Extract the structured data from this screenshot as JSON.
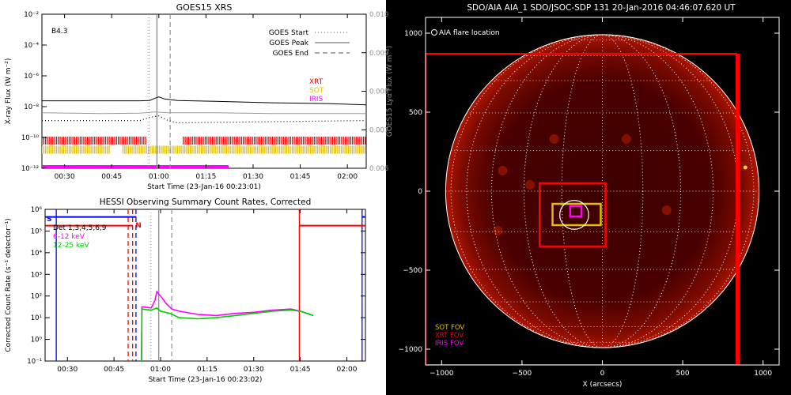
{
  "chart_data": [
    {
      "type": "line",
      "title": "GOES15 XRS",
      "class_label": "B4.3",
      "xlabel": "Start Time (23-Jan-16 00:23:01)",
      "ylabel": "X-ray Flux (W m⁻²)",
      "ylabel_right": "GOES15 Lyα Flux (W m⁻²)",
      "xlim": [
        0.38,
        2.1
      ],
      "x_ticks": [
        0.5,
        0.75,
        1.0,
        1.25,
        1.5,
        1.75,
        2.0
      ],
      "x_tick_labels": [
        "00:30",
        "00:45",
        "01:00",
        "01:15",
        "01:30",
        "01:45",
        "02:00"
      ],
      "y_log_range": [
        -12,
        -2
      ],
      "y_ticks": [
        {
          "exp": -2,
          "label": "10⁻²"
        },
        {
          "exp": -4,
          "label": "10⁻⁴"
        },
        {
          "exp": -6,
          "label": "10⁻⁶"
        },
        {
          "exp": -8,
          "label": "10⁻⁸"
        },
        {
          "exp": -10,
          "label": "10⁻¹⁰"
        },
        {
          "exp": -12,
          "label": "10⁻¹²"
        }
      ],
      "y2lim": [
        0.006,
        0.01
      ],
      "y2_ticks": [
        {
          "value": 0.01,
          "label": "0.010"
        },
        {
          "value": 0.009,
          "label": "0.009"
        },
        {
          "value": 0.008,
          "label": "0.008"
        },
        {
          "value": 0.007,
          "label": "0.007"
        },
        {
          "value": 0.006,
          "label": "0.006"
        }
      ],
      "legend": [
        {
          "name": "GOES Start",
          "style": "dotted",
          "color": "#909090"
        },
        {
          "name": "GOES Peak",
          "style": "solid",
          "color": "#909090"
        },
        {
          "name": "GOES End",
          "style": "dashed",
          "color": "#909090"
        }
      ],
      "instrument_legend": [
        {
          "name": "XRT",
          "color": "#ff0000"
        },
        {
          "name": "SOT",
          "color": "#e0c000"
        },
        {
          "name": "IRIS",
          "color": "#ff00ff"
        }
      ],
      "events": {
        "start": 0.948,
        "peak": 0.99,
        "end": 1.06
      },
      "series": [
        {
          "color": "#000000",
          "style": "solid",
          "x": [
            0.38,
            0.9,
            0.95,
            0.98,
            1.0,
            1.03,
            1.1,
            1.3,
            1.6,
            1.9,
            2.1
          ],
          "log_y": [
            -7.62,
            -7.62,
            -7.6,
            -7.45,
            -7.37,
            -7.5,
            -7.6,
            -7.65,
            -7.75,
            -7.8,
            -7.88
          ]
        },
        {
          "color": "#9a9a9a",
          "style": "solid",
          "x": [
            0.38,
            0.7,
            0.9,
            0.98,
            1.05,
            1.3,
            1.6,
            1.9,
            2.1
          ],
          "log_y": [
            -8.4,
            -8.45,
            -8.42,
            -8.35,
            -8.4,
            -8.4,
            -8.45,
            -8.45,
            -8.45
          ]
        },
        {
          "color": "#000000",
          "style": "dotted",
          "x": [
            0.38,
            0.9,
            0.95,
            1.0,
            1.05,
            1.1,
            2.1
          ],
          "log_y": [
            -8.9,
            -8.9,
            -8.7,
            -8.6,
            -8.9,
            -9.05,
            -8.9
          ]
        }
      ],
      "coverage": [
        {
          "name": "XRT",
          "color": "#ff0000",
          "log_y": -10.2,
          "segments": [
            [
              0.38,
              0.93
            ],
            [
              1.13,
              2.1
            ]
          ]
        },
        {
          "name": "SOT",
          "color": "#e0c000",
          "log_y": -10.8,
          "segments": [
            [
              0.38,
              0.74
            ],
            [
              0.81,
              2.1
            ]
          ]
        },
        {
          "name": "IRIS",
          "color": "#ff00ff",
          "log_y": -11.9,
          "segments": [
            [
              0.38,
              1.37
            ]
          ]
        }
      ]
    },
    {
      "type": "line",
      "title": "HESSI Observing Summary Count Rates, Corrected",
      "xlabel": "Start Time (23-Jan-16 00:23:02)",
      "ylabel": "Corrected Count Rate (s⁻¹ detector⁻¹)",
      "xlim": [
        0.38,
        2.1
      ],
      "x_ticks": [
        0.5,
        0.75,
        1.0,
        1.25,
        1.5,
        1.75,
        2.0
      ],
      "x_tick_labels": [
        "00:30",
        "00:45",
        "01:00",
        "01:15",
        "01:30",
        "01:45",
        "02:00"
      ],
      "y_log_range": [
        -1,
        6
      ],
      "y_ticks": [
        {
          "exp": 6,
          "label": "10⁶"
        },
        {
          "exp": 5,
          "label": "10⁵"
        },
        {
          "exp": 4,
          "label": "10⁴"
        },
        {
          "exp": 3,
          "label": "10³"
        },
        {
          "exp": 2,
          "label": "10²"
        },
        {
          "exp": 1,
          "label": "10¹"
        },
        {
          "exp": 0,
          "label": "10⁰"
        },
        {
          "exp": -1,
          "label": "10⁻¹"
        }
      ],
      "annotations": [
        {
          "text": "S",
          "color": "#0000ff"
        },
        {
          "text": "N",
          "color": "#ff0000"
        }
      ],
      "legend": [
        {
          "name": "Det 1,3,4,5,6,9",
          "color": "#000000"
        },
        {
          "name": "6-12 keV",
          "color": "#ff00ff"
        },
        {
          "name": "12-25 keV",
          "color": "#00cc00"
        }
      ],
      "events": {
        "start": 0.948,
        "peak": 0.99,
        "end": 1.06
      },
      "series": [
        {
          "name": "6-12 keV",
          "color": "#ff00ff",
          "x": [
            0.898,
            0.9,
            0.95,
            0.97,
            0.98,
            1.0,
            1.03,
            1.06,
            1.1,
            1.2,
            1.3,
            1.4,
            1.5,
            1.6,
            1.7,
            1.75,
            1.82
          ],
          "log_y": [
            -1,
            1.5,
            1.45,
            1.8,
            2.2,
            2.0,
            1.65,
            1.4,
            1.3,
            1.15,
            1.1,
            1.2,
            1.25,
            1.35,
            1.4,
            1.3,
            1.1
          ]
        },
        {
          "name": "12-25 keV",
          "color": "#00cc00",
          "x": [
            0.898,
            0.9,
            0.95,
            0.98,
            1.0,
            1.05,
            1.1,
            1.2,
            1.3,
            1.4,
            1.5,
            1.6,
            1.7,
            1.75,
            1.82
          ],
          "log_y": [
            -1,
            1.4,
            1.35,
            1.45,
            1.3,
            1.2,
            1.0,
            0.95,
            1.0,
            1.1,
            1.2,
            1.3,
            1.35,
            1.3,
            1.1
          ]
        }
      ],
      "saa_lines": [
        {
          "color": "#0000ff",
          "style": "solid",
          "x": 0.44
        },
        {
          "color": "#0000ff",
          "style": "dashed",
          "x": 0.868
        },
        {
          "color": "#ff0000",
          "style": "dashed",
          "x": 0.826
        },
        {
          "color": "#ff0000",
          "style": "dashed",
          "x": 0.85
        },
        {
          "color": "#ff0000",
          "style": "solid",
          "x": 1.745
        },
        {
          "color": "#0000ff",
          "style": "solid",
          "x": 2.082
        }
      ],
      "segment_lines": [
        {
          "color": "#0000ff",
          "log_y": 5.65,
          "x0": 0.38,
          "x1": 0.87
        },
        {
          "color": "#ff0000",
          "log_y": 5.25,
          "x0": 0.38,
          "x1": 0.85
        },
        {
          "color": "#ff0000",
          "log_y": 5.25,
          "x0": 1.745,
          "x1": 2.1
        },
        {
          "color": "#0000ff",
          "log_y": 5.65,
          "x0": 2.082,
          "x1": 2.1
        }
      ]
    },
    {
      "type": "scatter",
      "title": "SDO/AIA AIA_1 SDO/JSOC-SDP 131 20-Jan-2016 04:46:07.620 UT",
      "legend_top": "AIA flare location",
      "xlabel": "X (arcsecs)",
      "ylabel": "",
      "xlim": [
        -1100,
        1100
      ],
      "ylim": [
        -1100,
        1100
      ],
      "x_ticks": [
        {
          "value": -1000,
          "label": "−1000"
        },
        {
          "value": -500,
          "label": "−500"
        },
        {
          "value": 0,
          "label": "0"
        },
        {
          "value": 500,
          "label": "500"
        },
        {
          "value": 1000,
          "label": "1000"
        }
      ],
      "y_ticks": [
        {
          "value": 1000,
          "label": "1000"
        },
        {
          "value": 500,
          "label": "500"
        },
        {
          "value": 0,
          "label": "0"
        },
        {
          "value": -500,
          "label": "−500"
        },
        {
          "value": -1000,
          "label": "−1000"
        }
      ],
      "solar_radius": 975,
      "flare_location": [
        -175,
        -150
      ],
      "fov": [
        {
          "name": "XRT FOV",
          "color": "#ff0000",
          "x": [
            -1100,
            835
          ],
          "y": [
            -1100,
            870
          ]
        },
        {
          "name": "XRT FOV",
          "color": "#ff0000",
          "x": [
            -390,
            20
          ],
          "y": [
            -350,
            50
          ]
        },
        {
          "name": "SOT FOV",
          "color": "#e0c000",
          "x": [
            -310,
            -10
          ],
          "y": [
            -215,
            -80
          ]
        },
        {
          "name": "IRIS FOV",
          "color": "#ff00ff",
          "x": [
            -200,
            -130
          ],
          "y": [
            -160,
            -95
          ]
        }
      ],
      "fov_legend": [
        {
          "name": "SOT FOV",
          "color": "#e0c000"
        },
        {
          "name": "XRT FOV",
          "color": "#ff0000"
        },
        {
          "name": "IRIS FOV",
          "color": "#ff00ff"
        }
      ]
    }
  ]
}
